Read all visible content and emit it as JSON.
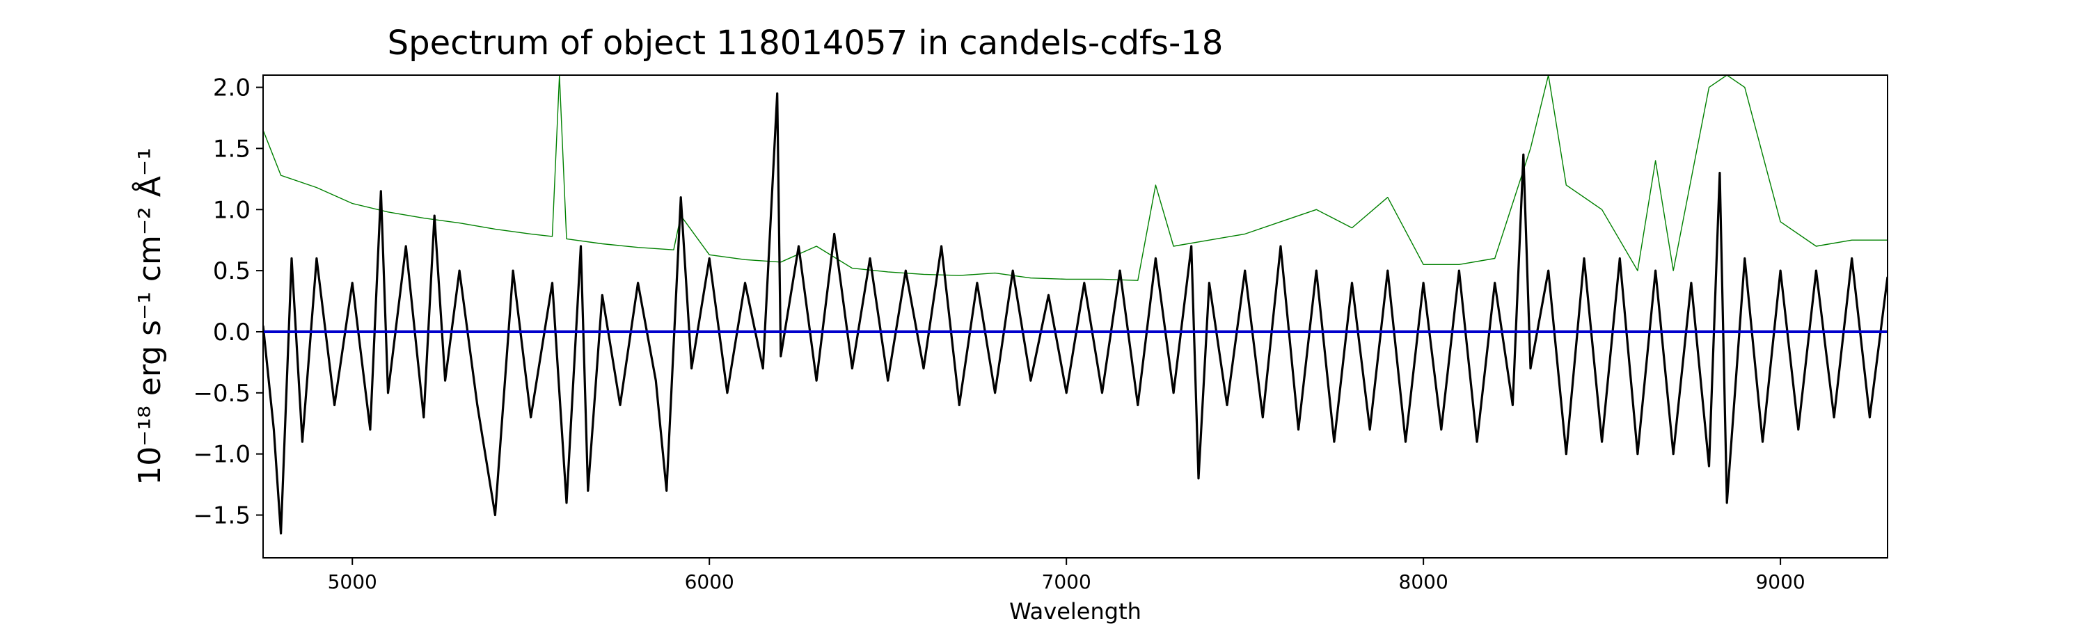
{
  "chart_data": {
    "type": "line",
    "title": "Spectrum of object 118014057 in candels-cdfs-18",
    "xlabel": "Wavelength",
    "ylabel": "10⁻¹⁸ erg s⁻¹ cm⁻² Å⁻¹",
    "xlim": [
      4750,
      9300
    ],
    "ylim": [
      -1.85,
      2.1
    ],
    "x_ticks": [
      5000,
      6000,
      7000,
      8000,
      9000
    ],
    "y_ticks": [
      -1.5,
      -1.0,
      -0.5,
      0.0,
      0.5,
      1.0,
      1.5,
      2.0
    ],
    "y_tick_labels": [
      "−1.5",
      "−1.0",
      "−0.5",
      "0.0",
      "0.5",
      "1.0",
      "1.5",
      "2.0"
    ],
    "grid": false,
    "series": [
      {
        "color": "#008000",
        "x": [
          4750,
          4800,
          4900,
          5000,
          5100,
          5200,
          5300,
          5400,
          5500,
          5560,
          5580,
          5600,
          5700,
          5800,
          5900,
          5920,
          6000,
          6100,
          6200,
          6300,
          6400,
          6500,
          6600,
          6700,
          6800,
          6900,
          7000,
          7100,
          7200,
          7250,
          7300,
          7400,
          7500,
          7600,
          7700,
          7800,
          7900,
          8000,
          8100,
          8200,
          8300,
          8350,
          8400,
          8500,
          8600,
          8650,
          8700,
          8800,
          8850,
          8900,
          9000,
          9100,
          9200,
          9300
        ],
        "values": [
          1.65,
          1.28,
          1.18,
          1.05,
          0.98,
          0.93,
          0.89,
          0.84,
          0.8,
          0.78,
          2.1,
          0.76,
          0.72,
          0.69,
          0.67,
          0.95,
          0.63,
          0.59,
          0.57,
          0.7,
          0.52,
          0.49,
          0.47,
          0.46,
          0.48,
          0.44,
          0.43,
          0.43,
          0.42,
          1.2,
          0.7,
          0.75,
          0.8,
          0.9,
          1.0,
          0.85,
          1.1,
          0.55,
          0.55,
          0.6,
          1.5,
          2.1,
          1.2,
          1.0,
          0.5,
          1.4,
          0.5,
          2.0,
          2.1,
          2.0,
          0.9,
          0.7,
          0.75,
          0.75
        ]
      },
      {
        "color": "#000000",
        "x": [
          4750,
          4780,
          4800,
          4830,
          4860,
          4900,
          4950,
          5000,
          5050,
          5080,
          5100,
          5150,
          5200,
          5230,
          5260,
          5300,
          5350,
          5400,
          5450,
          5500,
          5560,
          5600,
          5640,
          5660,
          5700,
          5750,
          5800,
          5850,
          5880,
          5920,
          5950,
          6000,
          6050,
          6100,
          6150,
          6190,
          6200,
          6250,
          6300,
          6350,
          6400,
          6450,
          6500,
          6550,
          6600,
          6650,
          6700,
          6750,
          6800,
          6850,
          6900,
          6950,
          7000,
          7050,
          7100,
          7150,
          7200,
          7250,
          7300,
          7350,
          7370,
          7400,
          7450,
          7500,
          7550,
          7600,
          7650,
          7700,
          7750,
          7800,
          7850,
          7900,
          7950,
          8000,
          8050,
          8100,
          8150,
          8200,
          8250,
          8280,
          8300,
          8350,
          8400,
          8450,
          8500,
          8550,
          8600,
          8650,
          8700,
          8750,
          8800,
          8830,
          8850,
          8900,
          8950,
          9000,
          9050,
          9100,
          9150,
          9200,
          9250,
          9300
        ],
        "values": [
          0.05,
          -0.8,
          -1.65,
          0.6,
          -0.9,
          0.6,
          -0.6,
          0.4,
          -0.8,
          1.15,
          -0.5,
          0.7,
          -0.7,
          0.95,
          -0.4,
          0.5,
          -0.6,
          -1.5,
          0.5,
          -0.7,
          0.4,
          -1.4,
          0.7,
          -1.3,
          0.3,
          -0.6,
          0.4,
          -0.4,
          -1.3,
          1.1,
          -0.3,
          0.6,
          -0.5,
          0.4,
          -0.3,
          1.95,
          -0.2,
          0.7,
          -0.4,
          0.8,
          -0.3,
          0.6,
          -0.4,
          0.5,
          -0.3,
          0.7,
          -0.6,
          0.4,
          -0.5,
          0.5,
          -0.4,
          0.3,
          -0.5,
          0.4,
          -0.5,
          0.5,
          -0.6,
          0.6,
          -0.5,
          0.7,
          -1.2,
          0.4,
          -0.6,
          0.5,
          -0.7,
          0.7,
          -0.8,
          0.5,
          -0.9,
          0.4,
          -0.8,
          0.5,
          -0.9,
          0.4,
          -0.8,
          0.5,
          -0.9,
          0.4,
          -0.6,
          1.45,
          -0.3,
          0.5,
          -1.0,
          0.6,
          -0.9,
          0.6,
          -1.0,
          0.5,
          -1.0,
          0.4,
          -1.1,
          1.3,
          -1.4,
          0.6,
          -0.9,
          0.5,
          -0.8,
          0.5,
          -0.7,
          0.6,
          -0.7,
          0.45
        ]
      },
      {
        "color": "#0000cc",
        "x": [
          4750,
          9300
        ],
        "values": [
          0.0,
          0.0
        ]
      }
    ]
  }
}
